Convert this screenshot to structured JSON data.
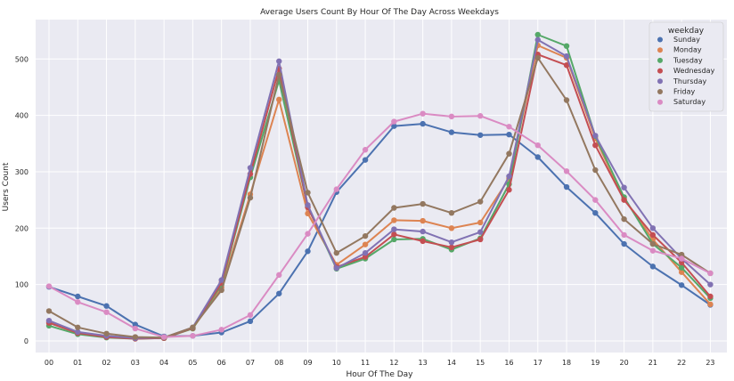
{
  "chart_data": {
    "type": "line",
    "title": "Average Users Count By Hour Of The Day Across Weekdays",
    "xlabel": "Hour Of The Day",
    "ylabel": "Users Count",
    "categories": [
      "00",
      "01",
      "02",
      "03",
      "04",
      "05",
      "06",
      "07",
      "08",
      "09",
      "10",
      "11",
      "12",
      "13",
      "14",
      "15",
      "16",
      "17",
      "18",
      "19",
      "20",
      "21",
      "22",
      "23"
    ],
    "ylim": [
      -22,
      560
    ],
    "yticks": [
      0,
      100,
      200,
      300,
      400,
      500
    ],
    "grid": true,
    "background": "#eaeaf2",
    "legend": {
      "title": "weekday",
      "placement": "top-right"
    },
    "series": [
      {
        "name": "Sunday",
        "color": "#4c72b0",
        "values": [
          96,
          79,
          62,
          29,
          8,
          9,
          15,
          35,
          84,
          159,
          264,
          321,
          381,
          385,
          370,
          365,
          366,
          326,
          273,
          227,
          172,
          132,
          99,
          64
        ]
      },
      {
        "name": "Monday",
        "color": "#dd8452",
        "values": [
          35,
          15,
          9,
          5,
          5,
          22,
          95,
          260,
          428,
          226,
          135,
          171,
          214,
          213,
          200,
          210,
          288,
          524,
          502,
          359,
          252,
          180,
          122,
          65
        ]
      },
      {
        "name": "Tuesday",
        "color": "#55a868",
        "values": [
          27,
          12,
          6,
          4,
          5,
          22,
          100,
          290,
          462,
          238,
          128,
          146,
          180,
          181,
          162,
          182,
          278,
          543,
          523,
          363,
          255,
          172,
          130,
          76
        ]
      },
      {
        "name": "Wednesday",
        "color": "#c44e52",
        "values": [
          32,
          14,
          7,
          4,
          5,
          23,
          103,
          296,
          483,
          237,
          131,
          149,
          189,
          177,
          166,
          180,
          268,
          508,
          489,
          347,
          250,
          188,
          139,
          79
        ]
      },
      {
        "name": "Thursday",
        "color": "#8172b3",
        "values": [
          36,
          16,
          9,
          5,
          6,
          24,
          108,
          307,
          496,
          241,
          129,
          156,
          198,
          194,
          175,
          193,
          292,
          534,
          505,
          364,
          272,
          200,
          146,
          100
        ]
      },
      {
        "name": "Friday",
        "color": "#937860",
        "values": [
          53,
          24,
          13,
          7,
          6,
          24,
          90,
          254,
          472,
          263,
          156,
          186,
          236,
          243,
          227,
          247,
          332,
          502,
          427,
          303,
          216,
          172,
          153,
          120
        ]
      },
      {
        "name": "Saturday",
        "color": "#da8bc3",
        "values": [
          97,
          69,
          51,
          22,
          7,
          9,
          20,
          46,
          117,
          190,
          269,
          339,
          389,
          403,
          398,
          399,
          380,
          347,
          301,
          250,
          188,
          160,
          146,
          120
        ]
      }
    ]
  }
}
